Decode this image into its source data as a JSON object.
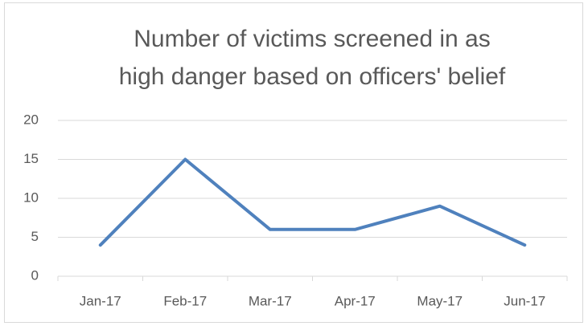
{
  "chart_data": {
    "type": "line",
    "title": [
      "Number of victims screened in as",
      "high danger based on officers' belief"
    ],
    "categories": [
      "Jan-17",
      "Feb-17",
      "Mar-17",
      "Apr-17",
      "May-17",
      "Jun-17"
    ],
    "series": [
      {
        "name": "Number of victims",
        "color": "#4f81bd",
        "values": [
          4,
          15,
          6,
          6,
          9,
          4
        ]
      }
    ],
    "ylim": [
      0,
      20
    ],
    "yticks": [
      0,
      5,
      10,
      15,
      20
    ],
    "grid": true
  }
}
